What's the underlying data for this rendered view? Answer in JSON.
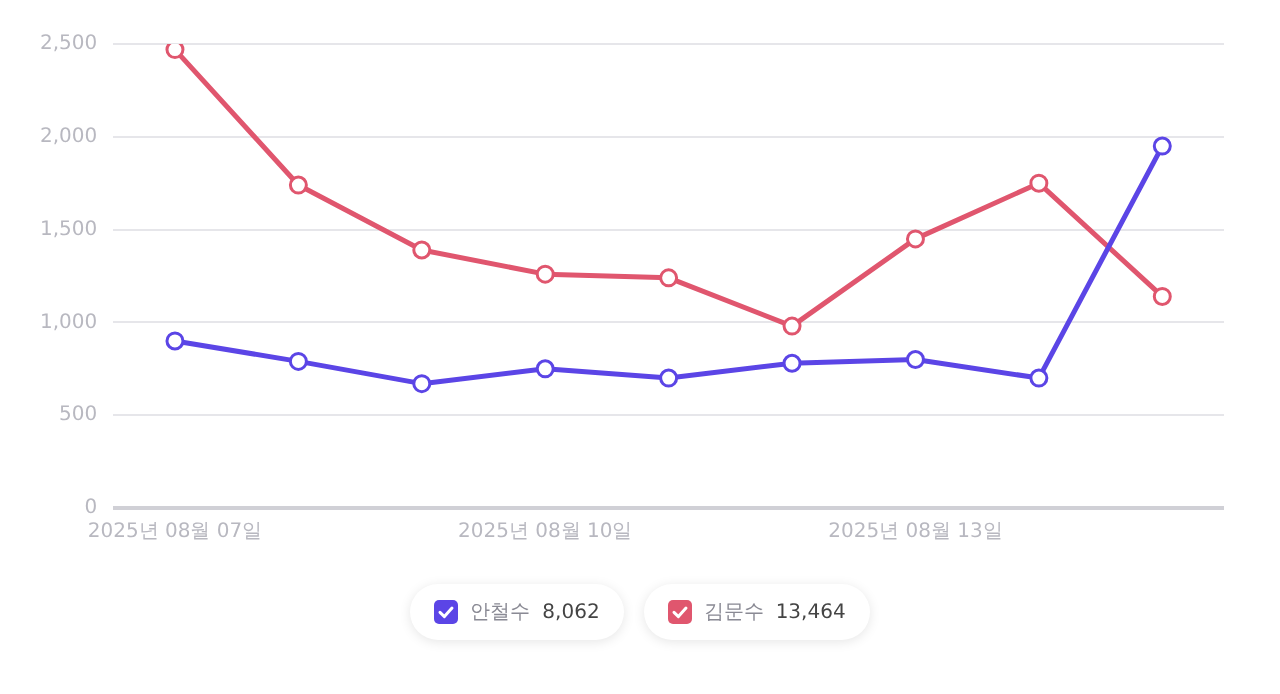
{
  "chart_data": {
    "type": "line",
    "categories": [
      "2025년 08월 07일",
      null,
      null,
      "2025년 08월 10일",
      null,
      null,
      "2025년 08월 13일",
      null,
      null
    ],
    "series": [
      {
        "name": "안철수",
        "color": "#5b45e6",
        "values": [
          900,
          790,
          670,
          750,
          700,
          780,
          800,
          700,
          1950
        ]
      },
      {
        "name": "김문수",
        "color": "#e0566e",
        "values": [
          2470,
          1740,
          1390,
          1260,
          1240,
          980,
          1450,
          1750,
          1140
        ]
      }
    ],
    "annotations": [
      "8,062",
      "13,464"
    ],
    "ylim": [
      0,
      2500
    ],
    "yticks": [
      0,
      {
        "value": 500,
        "label": "500"
      },
      {
        "value": 1000,
        "label": "1,000"
      },
      {
        "value": 1500,
        "label": "1,500"
      },
      {
        "value": 2000,
        "label": "2,000"
      },
      {
        "value": 2500,
        "label": "2,500"
      }
    ],
    "grid": "y",
    "legend": "bottom",
    "marker": "circle",
    "line_style": "solid"
  }
}
